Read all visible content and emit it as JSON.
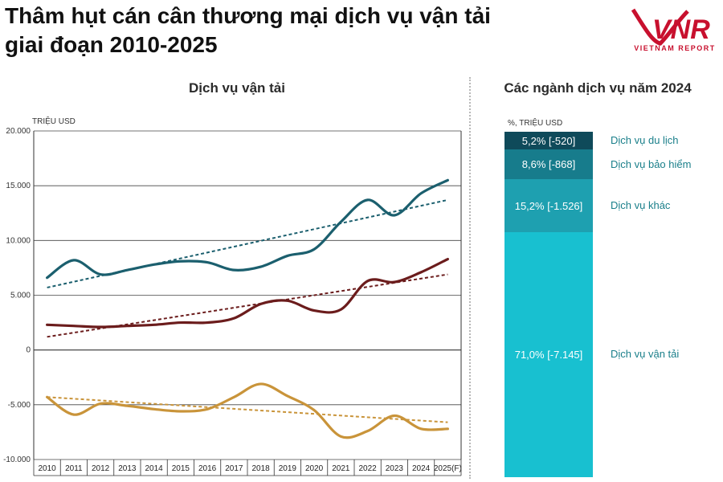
{
  "header": {
    "title_line1": "Thâm hụt cán cân thương mại dịch vụ vận tải",
    "title_line2": "giai đoạn 2010-2025",
    "logo_text": "VIETNAM REPORT",
    "logo_mark": "VNR"
  },
  "colors": {
    "teal_line": "#1b5f6e",
    "red_line": "#6b1c1c",
    "gold_line": "#c9943a",
    "seg1": "#0f4a5a",
    "seg2": "#177c8c",
    "seg3": "#1ea0b0",
    "seg4": "#18c0d0",
    "brand": "#c8102e"
  },
  "chart_data": [
    {
      "type": "line",
      "title": "Dịch vụ vận tải",
      "ylabel": "TRIỆU USD",
      "ylim": [
        -10000,
        20000
      ],
      "yticks": [
        20000,
        15000,
        10000,
        5000,
        0,
        -5000,
        -10000
      ],
      "ytick_labels": [
        "20.000",
        "15.000",
        "10.000",
        "5.000",
        "0",
        "-5.000",
        "-10.000"
      ],
      "categories": [
        "2010",
        "2011",
        "2012",
        "2013",
        "2014",
        "2015",
        "2016",
        "2017",
        "2018",
        "2019",
        "2020",
        "2021",
        "2022",
        "2023",
        "2024",
        "2025(F)"
      ],
      "series": [
        {
          "name": "teal",
          "color_key": "teal_line",
          "style": "solid",
          "values": [
            6600,
            8200,
            6900,
            7300,
            7800,
            8100,
            8000,
            7300,
            7600,
            8600,
            9200,
            11700,
            13700,
            12300,
            14300,
            15500
          ]
        },
        {
          "name": "teal-trend",
          "color_key": "teal_line",
          "style": "dashed",
          "values": [
            5700,
            6230,
            6770,
            7300,
            7830,
            8370,
            8900,
            9430,
            9970,
            10500,
            11030,
            11570,
            12100,
            12630,
            13170,
            13700
          ]
        },
        {
          "name": "red",
          "color_key": "red_line",
          "style": "solid",
          "values": [
            2300,
            2200,
            2100,
            2200,
            2300,
            2500,
            2500,
            2900,
            4200,
            4500,
            3600,
            3700,
            6300,
            6200,
            7100,
            8300
          ]
        },
        {
          "name": "red-trend",
          "color_key": "red_line",
          "style": "dashed",
          "values": [
            1200,
            1580,
            1960,
            2340,
            2720,
            3100,
            3480,
            3860,
            4240,
            4620,
            5000,
            5380,
            5760,
            6140,
            6520,
            6900
          ]
        },
        {
          "name": "gold",
          "color_key": "gold_line",
          "style": "solid",
          "values": [
            -4300,
            -5900,
            -4900,
            -5100,
            -5400,
            -5600,
            -5400,
            -4300,
            -3100,
            -4200,
            -5500,
            -7900,
            -7400,
            -6000,
            -7200,
            -7200
          ]
        },
        {
          "name": "gold-trend",
          "color_key": "gold_line",
          "style": "dashed",
          "values": [
            -4300,
            -4450,
            -4600,
            -4760,
            -4910,
            -5060,
            -5210,
            -5370,
            -5520,
            -5670,
            -5820,
            -5970,
            -6130,
            -6280,
            -6430,
            -6600
          ]
        }
      ]
    },
    {
      "type": "bar",
      "title": "Các ngành dịch vụ năm 2024",
      "ylabel": "%, TRIỆU USD",
      "categories": [
        "Dịch vụ du lịch",
        "Dịch vụ bảo hiểm",
        "Dịch vụ khác",
        "Dịch vụ vận tải"
      ],
      "values": [
        5.2,
        8.6,
        15.2,
        71.0
      ],
      "labels": [
        "5,2%  [-520]",
        "8,6%  [-868]",
        "15,2%  [-1.526]",
        "71,0%  [-7.145]"
      ],
      "stacked": true
    }
  ]
}
